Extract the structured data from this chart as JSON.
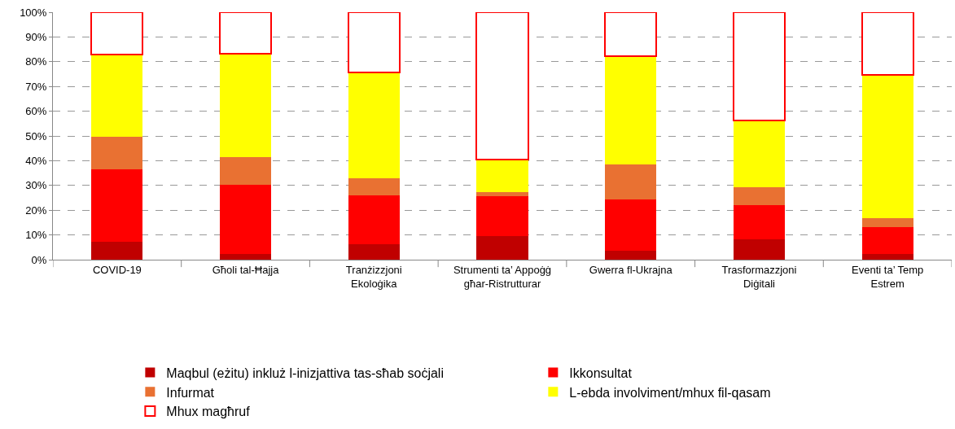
{
  "chart_data": {
    "type": "bar",
    "stacked": true,
    "categories": [
      "COVID-19",
      "Għoli tal-Ħajja",
      "Tranżizzjoni Ekoloġika",
      "Strumenti ta’ Appoġġ għar-Ristrutturar",
      "Gwerra fl-Ukrajna",
      "Trasformazzjoni Diġitali",
      "Eventi ta’ Temp Estrem"
    ],
    "series": [
      {
        "name": "Maqbul (eżitu) inkluż l-inizjattiva tas-sħab soċjali",
        "color": "#c00000",
        "values": [
          7.2,
          2.3,
          6.4,
          9.6,
          3.6,
          8.1,
          2.2
        ]
      },
      {
        "name": "Ikkonsultat",
        "color": "#ff0000",
        "values": [
          29.3,
          27.9,
          19.5,
          16.0,
          20.7,
          13.9,
          10.8
        ]
      },
      {
        "name": "Infurmat",
        "color": "#e97132",
        "values": [
          13.1,
          11.2,
          6.9,
          1.7,
          14.3,
          7.4,
          3.7
        ]
      },
      {
        "name": "L-ebda involviment/mhux fil-qasam",
        "color": "#ffff00",
        "values": [
          33.2,
          41.9,
          43.0,
          13.3,
          43.8,
          27.0,
          58.0
        ]
      },
      {
        "name": "Mhux magħruf",
        "color": "#ffffff",
        "values": [
          17.2,
          16.7,
          24.2,
          59.4,
          17.6,
          43.6,
          25.3
        ]
      }
    ],
    "ylim": [
      0,
      100
    ],
    "yticks": [
      {
        "value": 0,
        "label": "0%"
      },
      {
        "value": 10,
        "label": "10%"
      },
      {
        "value": 20,
        "label": "20%"
      },
      {
        "value": 30,
        "label": "30%"
      },
      {
        "value": 40,
        "label": "40%"
      },
      {
        "value": 50,
        "label": "50%"
      },
      {
        "value": 60,
        "label": "60%"
      },
      {
        "value": 70,
        "label": "70%"
      },
      {
        "value": 80,
        "label": "80%"
      },
      {
        "value": 90,
        "label": "90%"
      },
      {
        "value": 100,
        "label": "100%"
      }
    ],
    "grid": "y",
    "legend": "bottom"
  }
}
